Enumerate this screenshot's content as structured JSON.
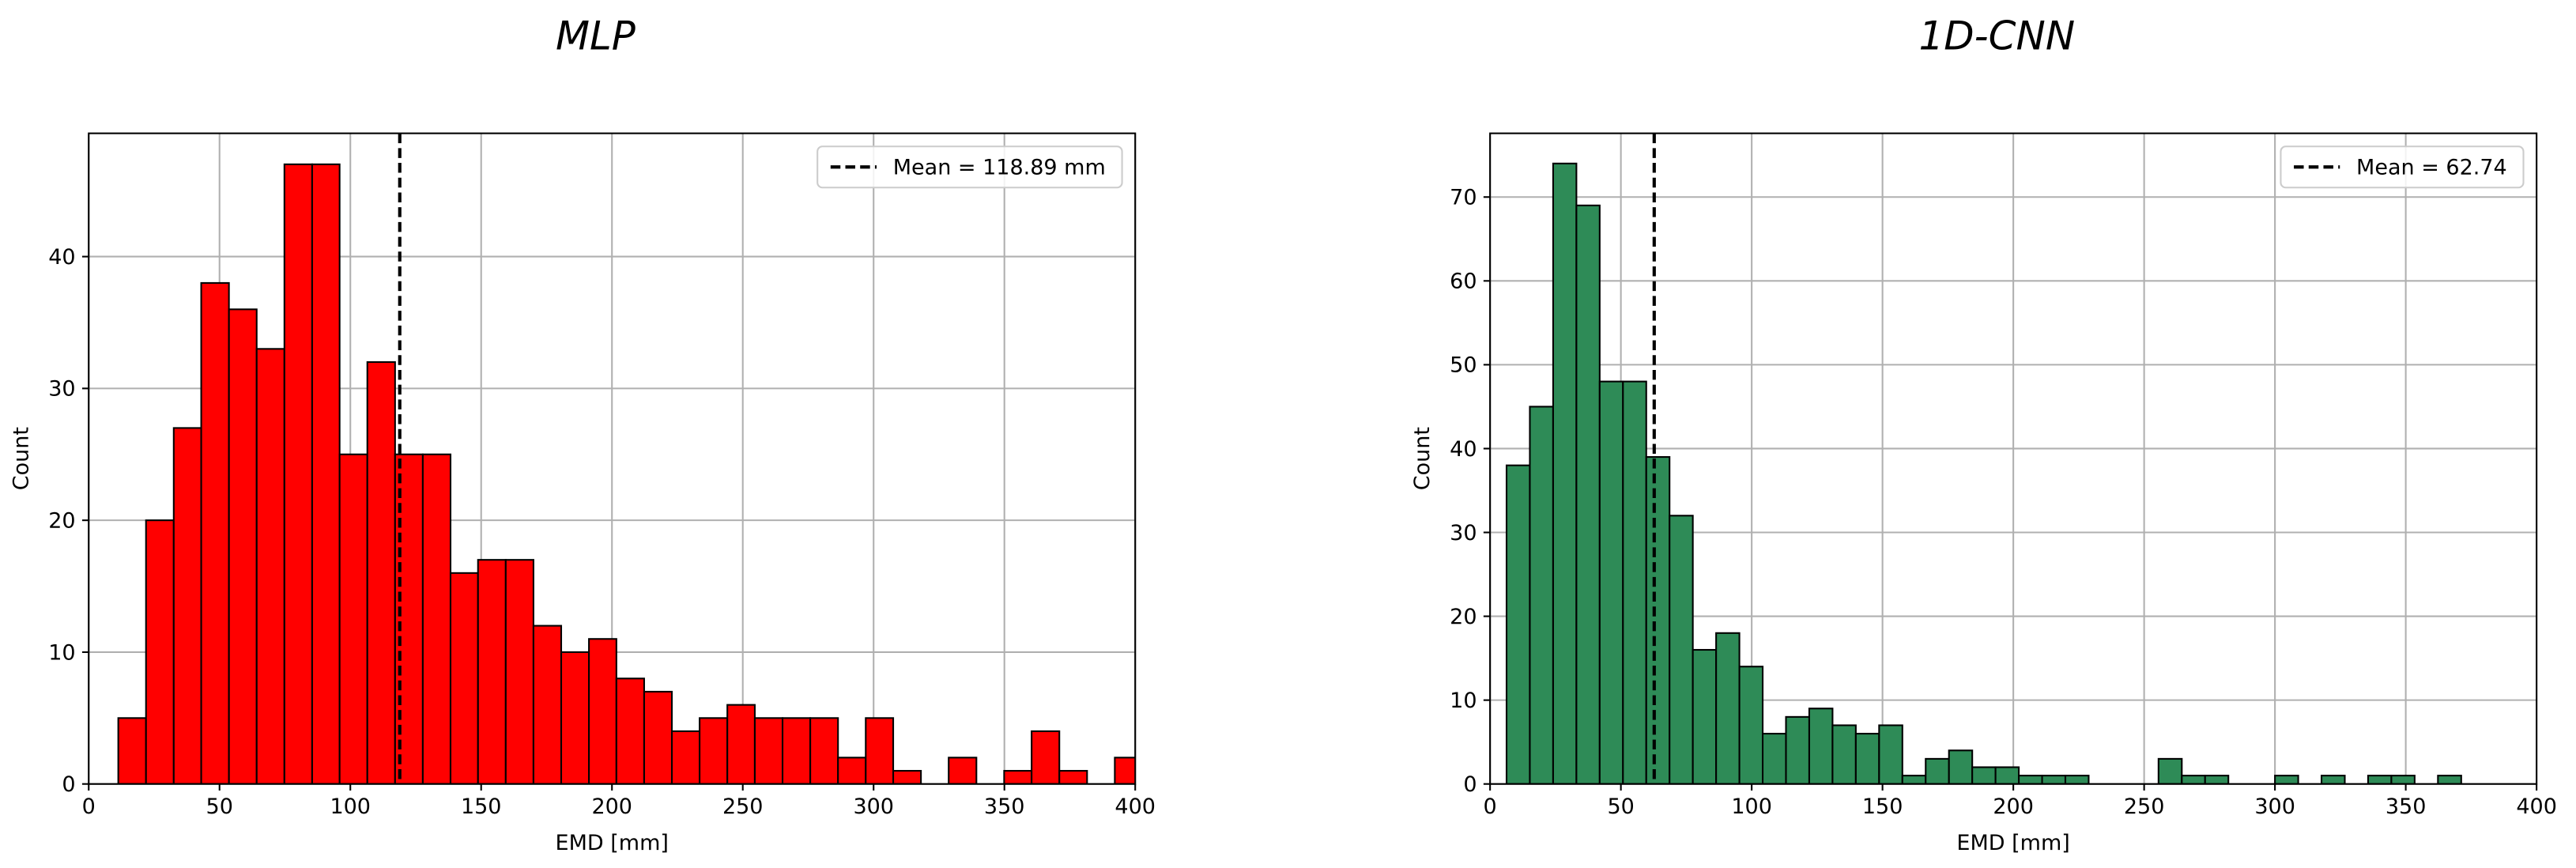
{
  "chart_data": [
    {
      "type": "histogram",
      "title": "MLP",
      "xlabel": "EMD [mm]",
      "ylabel": "Count",
      "color": "#ff0000",
      "edgecolor": "#000000",
      "bins": [
        11.3,
        21.9,
        32.5,
        43.0,
        53.6,
        64.2,
        74.8,
        85.4,
        95.9,
        106.5,
        117.1,
        127.7,
        138.3,
        148.8,
        159.4,
        170.0,
        180.6,
        191.2,
        201.7,
        212.3,
        222.9,
        233.5,
        244.1,
        254.6,
        265.2,
        275.8,
        286.4,
        297.0,
        307.5,
        318.1,
        328.7,
        339.3,
        349.9,
        360.4,
        371.0,
        381.6,
        392.2,
        402.8
      ],
      "values": [
        5,
        20,
        27,
        38,
        36,
        33,
        47,
        47,
        25,
        32,
        25,
        25,
        16,
        17,
        17,
        12,
        10,
        11,
        8,
        7,
        4,
        5,
        6,
        5,
        5,
        5,
        2,
        5,
        1,
        0,
        2,
        0,
        1,
        4,
        1,
        0,
        2
      ],
      "mean_line": {
        "value": 118.89,
        "label": "Mean = 118.89 mm"
      },
      "xlim": [
        0,
        400
      ],
      "xticks": [
        0,
        50,
        100,
        150,
        200,
        250,
        300,
        350,
        400
      ],
      "ylim": [
        0,
        49.35
      ],
      "yticks": [
        0,
        10,
        20,
        30,
        40
      ],
      "grid": true,
      "legend": "upper right"
    },
    {
      "type": "histogram",
      "title": "1D-CNN",
      "xlabel": "EMD [mm]",
      "ylabel": "Count",
      "color": "#2e8b57",
      "edgecolor": "#000000",
      "bins": [
        6.3,
        15.2,
        24.1,
        33.0,
        41.9,
        50.8,
        59.7,
        68.6,
        77.5,
        86.4,
        95.3,
        104.2,
        113.1,
        122.0,
        130.9,
        139.8,
        148.7,
        157.6,
        166.5,
        175.4,
        184.3,
        193.2,
        202.1,
        211.0,
        219.9,
        228.8,
        237.7,
        246.6,
        255.5,
        264.4,
        273.3,
        282.2,
        291.1,
        300.0,
        308.9,
        317.8,
        326.7,
        335.6,
        344.5,
        353.4,
        362.3,
        371.2
      ],
      "values": [
        38,
        45,
        74,
        69,
        48,
        48,
        39,
        32,
        16,
        18,
        14,
        6,
        8,
        9,
        7,
        6,
        7,
        1,
        3,
        4,
        2,
        2,
        1,
        1,
        1,
        0,
        0,
        0,
        3,
        1,
        1,
        0,
        0,
        1,
        0,
        1,
        0,
        1,
        1,
        0,
        1
      ],
      "mean_line": {
        "value": 62.74,
        "label": "Mean = 62.74"
      },
      "xlim": [
        0,
        400
      ],
      "xticks": [
        0,
        50,
        100,
        150,
        200,
        250,
        300,
        350,
        400
      ],
      "ylim": [
        0,
        77.6
      ],
      "yticks": [
        0,
        10,
        20,
        30,
        40,
        50,
        60,
        70
      ],
      "grid": true,
      "legend": "upper right"
    }
  ]
}
